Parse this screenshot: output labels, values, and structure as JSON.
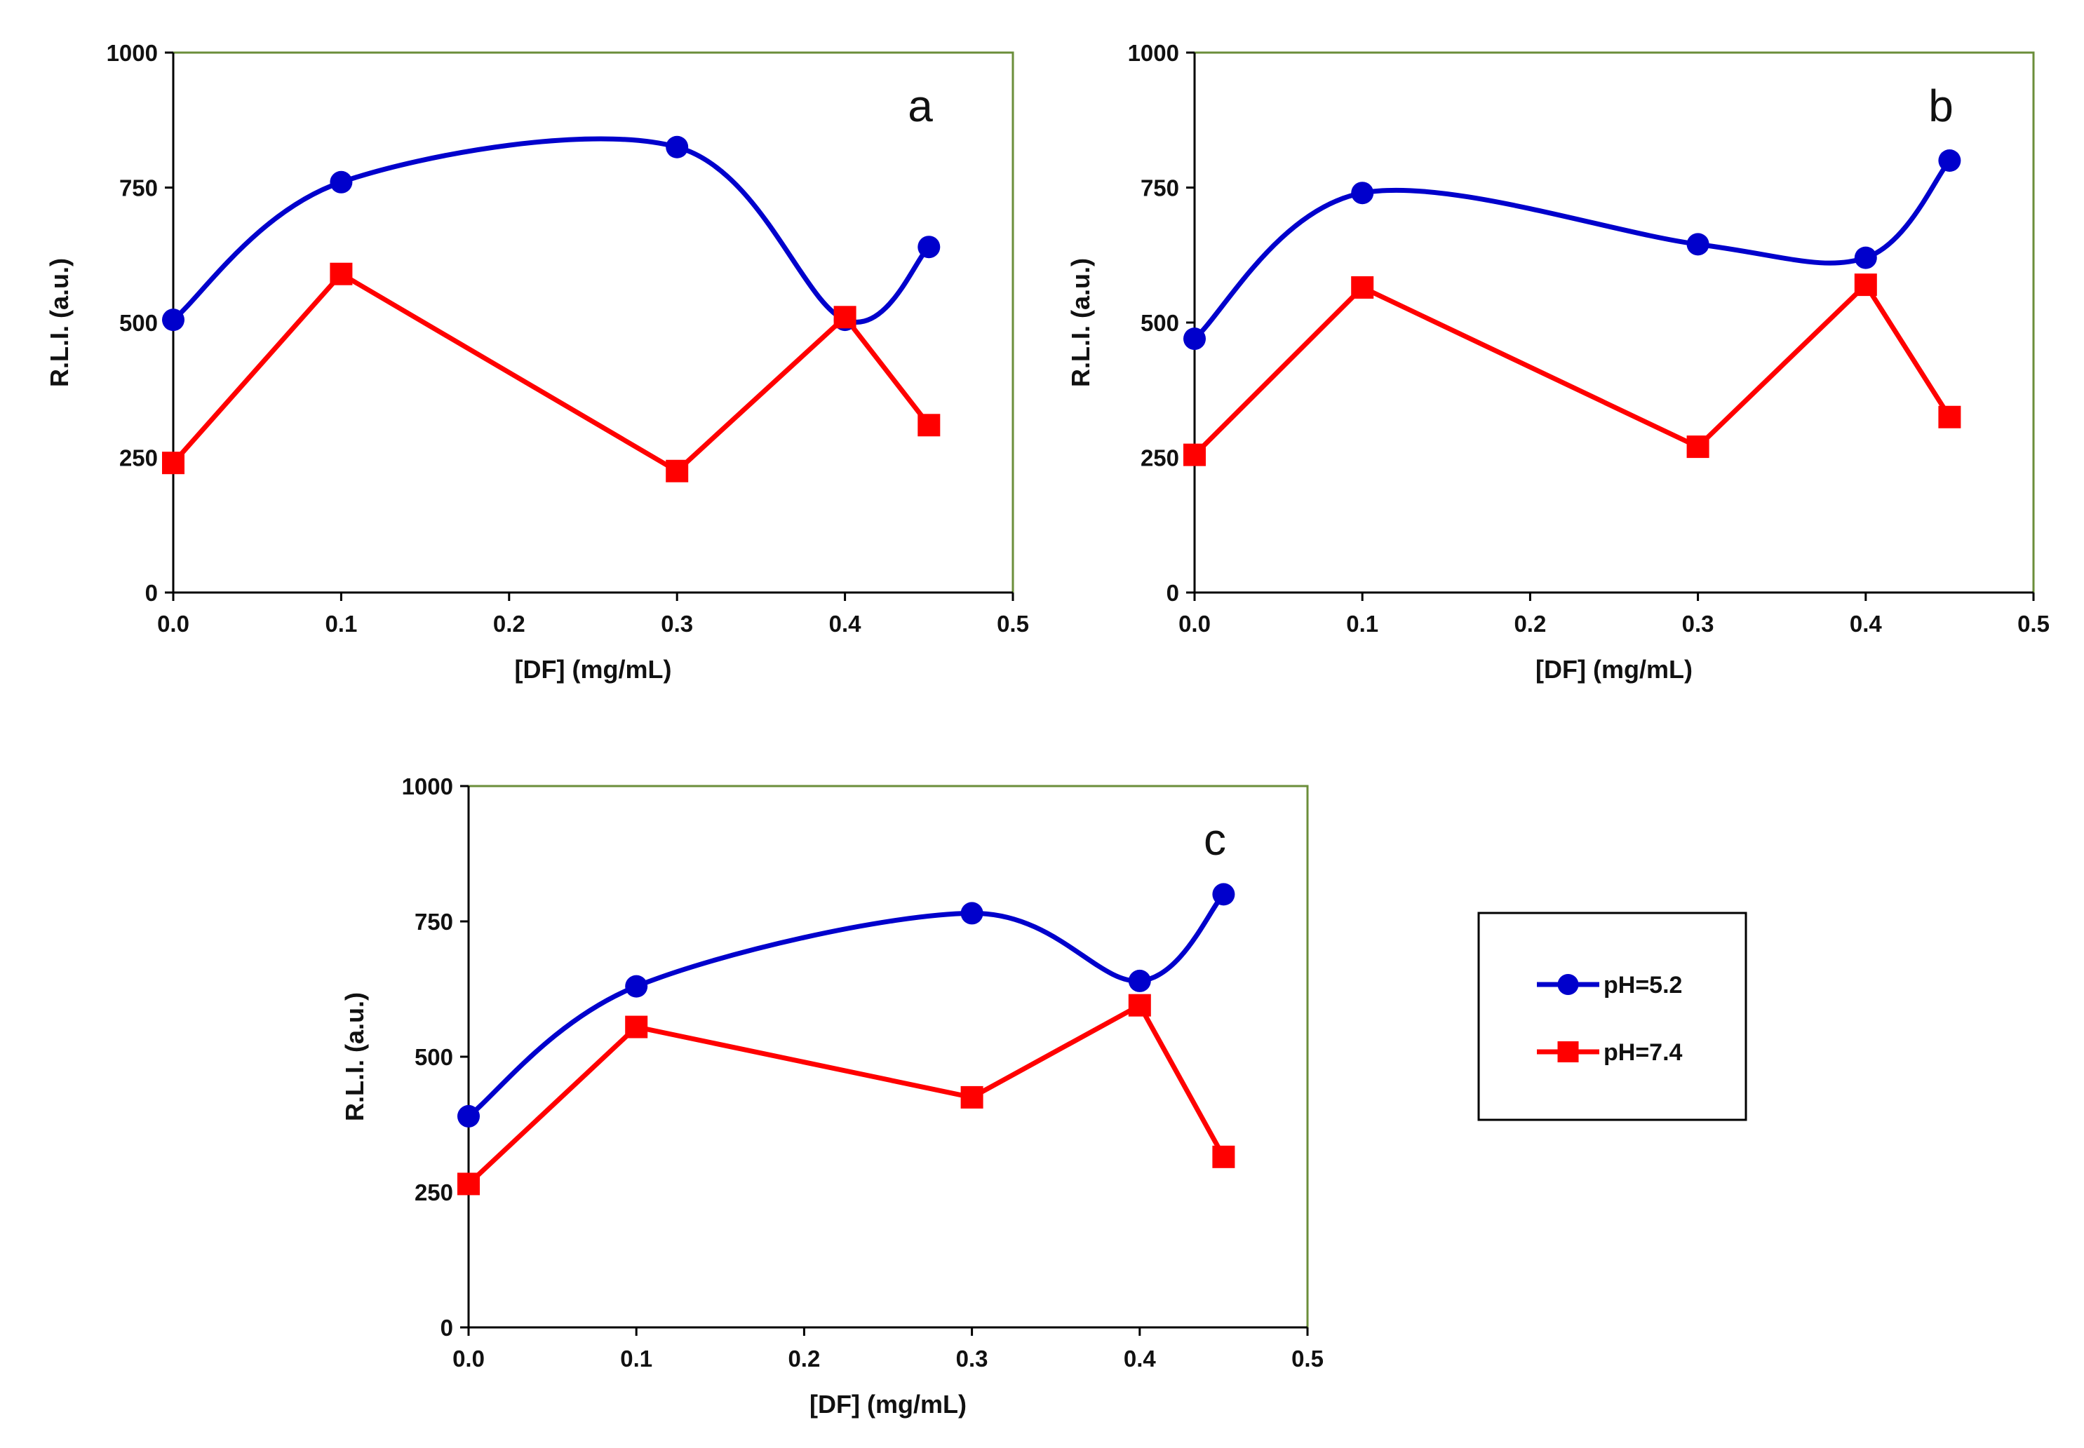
{
  "chart_data": [
    {
      "type": "line",
      "panel_label": "a",
      "title": "",
      "xlabel": "[DF] (mg/mL)",
      "ylabel": "R.L.I. (a.u.)",
      "xlim": [
        0,
        0.5
      ],
      "ylim": [
        0,
        1000
      ],
      "x_ticks": [
        "0.0",
        "0.1",
        "0.2",
        "0.3",
        "0.4",
        "0.5"
      ],
      "y_ticks": [
        "0",
        "250",
        "500",
        "750",
        "1000"
      ],
      "grid": false,
      "series": [
        {
          "name": "pH=5.2",
          "color": "#0000cc",
          "marker": "circle",
          "smooth": true,
          "x": [
            0.0,
            0.1,
            0.3,
            0.4,
            0.45
          ],
          "values": [
            505,
            760,
            825,
            505,
            640
          ]
        },
        {
          "name": "pH=7.4",
          "color": "#ff0000",
          "marker": "square",
          "smooth": false,
          "x": [
            0.0,
            0.1,
            0.3,
            0.4,
            0.45
          ],
          "values": [
            240,
            590,
            225,
            510,
            310
          ]
        }
      ]
    },
    {
      "type": "line",
      "panel_label": "b",
      "title": "",
      "xlabel": "[DF] (mg/mL)",
      "ylabel": "R.L.I. (a.u.)",
      "xlim": [
        0,
        0.5
      ],
      "ylim": [
        0,
        1000
      ],
      "x_ticks": [
        "0.0",
        "0.1",
        "0.2",
        "0.3",
        "0.4",
        "0.5"
      ],
      "y_ticks": [
        "0",
        "250",
        "500",
        "750",
        "1000"
      ],
      "grid": false,
      "series": [
        {
          "name": "pH=5.2",
          "color": "#0000cc",
          "marker": "circle",
          "smooth": true,
          "x": [
            0.0,
            0.1,
            0.3,
            0.4,
            0.45
          ],
          "values": [
            470,
            740,
            645,
            620,
            800
          ]
        },
        {
          "name": "pH=7.4",
          "color": "#ff0000",
          "marker": "square",
          "smooth": false,
          "x": [
            0.0,
            0.1,
            0.3,
            0.4,
            0.45
          ],
          "values": [
            255,
            565,
            270,
            570,
            325
          ]
        }
      ]
    },
    {
      "type": "line",
      "panel_label": "c",
      "title": "",
      "xlabel": "[DF] (mg/mL)",
      "ylabel": "R.L.I. (a.u.)",
      "xlim": [
        0,
        0.5
      ],
      "ylim": [
        0,
        1000
      ],
      "x_ticks": [
        "0.0",
        "0.1",
        "0.2",
        "0.3",
        "0.4",
        "0.5"
      ],
      "y_ticks": [
        "0",
        "250",
        "500",
        "750",
        "1000"
      ],
      "grid": false,
      "series": [
        {
          "name": "pH=5.2",
          "color": "#0000cc",
          "marker": "circle",
          "smooth": true,
          "x": [
            0.0,
            0.1,
            0.3,
            0.4,
            0.45
          ],
          "values": [
            390,
            630,
            765,
            640,
            800
          ]
        },
        {
          "name": "pH=7.4",
          "color": "#ff0000",
          "marker": "square",
          "smooth": false,
          "x": [
            0.0,
            0.1,
            0.3,
            0.4,
            0.45
          ],
          "values": [
            265,
            555,
            425,
            595,
            315
          ]
        }
      ]
    }
  ],
  "legend": {
    "placement": "right of panel c",
    "entries": [
      {
        "label": "pH=5.2",
        "color": "#0000cc",
        "marker": "circle"
      },
      {
        "label": "pH=7.4",
        "color": "#ff0000",
        "marker": "square"
      }
    ]
  },
  "colors": {
    "plot_border": "#6b8e3a",
    "axis": "#000000"
  }
}
